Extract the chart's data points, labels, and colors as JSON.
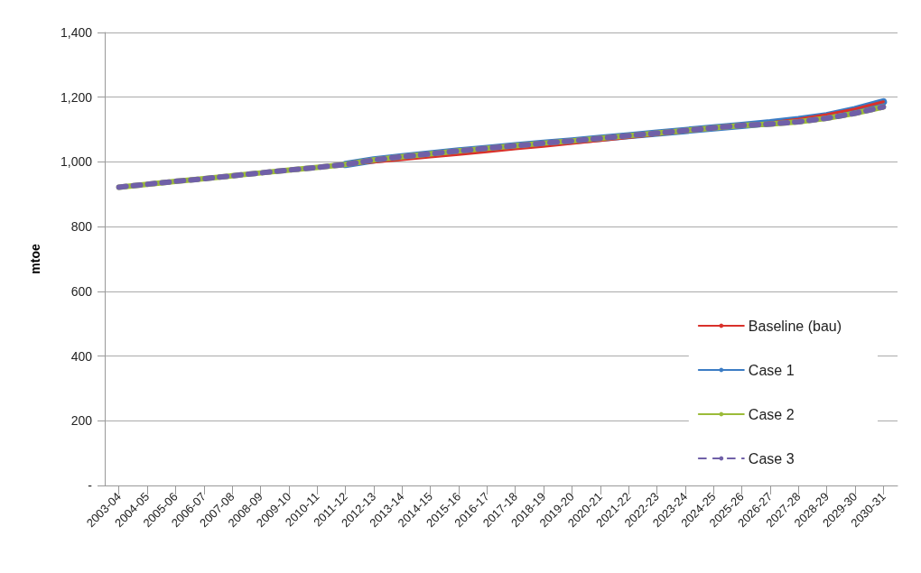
{
  "chart_data": {
    "type": "line",
    "ylabel": "mtoe",
    "categories": [
      "2003-04",
      "2004-05",
      "2005-06",
      "2006-07",
      "2007-08",
      "2008-09",
      "2009-10",
      "2010-11",
      "2011-12",
      "2012-13",
      "2013-14",
      "2014-15",
      "2015-16",
      "2016-17",
      "2017-18",
      "2018-19",
      "2019-20",
      "2020-21",
      "2021-22",
      "2022-23",
      "2023-24",
      "2024-25",
      "2025-26",
      "2026-27",
      "2027-28",
      "2028-29",
      "2029-30",
      "2030-31"
    ],
    "series": [
      {
        "name": "Baseline (bau)",
        "color": "#d9312b",
        "line_style": "solid",
        "values": [
          null,
          null,
          null,
          null,
          null,
          null,
          null,
          null,
          992,
          999,
          1007,
          1015,
          1023,
          1031,
          1040,
          1048,
          1057,
          1066,
          1075,
          1084,
          1093,
          1102,
          1111,
          1121,
          1132,
          1146,
          1164,
          1186
        ]
      },
      {
        "name": "Case 1",
        "color": "#3b7cc4",
        "line_style": "solid",
        "values": [
          null,
          null,
          null,
          null,
          null,
          null,
          null,
          null,
          992,
          1006,
          1016,
          1025,
          1034,
          1042,
          1050,
          1058,
          1065,
          1073,
          1081,
          1089,
          1097,
          1105,
          1113,
          1121,
          1131,
          1143,
          1162,
          1186
        ]
      },
      {
        "name": "Case 2",
        "color": "#9bbb39",
        "line_style": "solid",
        "values": [
          922,
          931,
          940,
          948,
          957,
          966,
          975,
          983,
          992,
          1006,
          1016,
          1025,
          1034,
          1042,
          1050,
          1058,
          1065,
          1073,
          1081,
          1089,
          1097,
          1105,
          1113,
          1117,
          1124,
          1135,
          1150,
          1170
        ]
      },
      {
        "name": "Case 3",
        "color": "#7060a8",
        "line_style": "dashed",
        "values": [
          922,
          931,
          940,
          948,
          957,
          966,
          975,
          983,
          992,
          1006,
          1016,
          1025,
          1034,
          1042,
          1050,
          1058,
          1065,
          1073,
          1081,
          1089,
          1097,
          1105,
          1113,
          1117,
          1124,
          1135,
          1150,
          1170
        ]
      }
    ],
    "ylim": [
      0,
      1400
    ],
    "yticks": [
      {
        "value": 0,
        "label": "-"
      },
      {
        "value": 200,
        "label": "200"
      },
      {
        "value": 400,
        "label": "400"
      },
      {
        "value": 600,
        "label": "600"
      },
      {
        "value": 800,
        "label": "800"
      },
      {
        "value": 1000,
        "label": "1,000"
      },
      {
        "value": 1200,
        "label": "1,200"
      },
      {
        "value": 1400,
        "label": "1,400"
      }
    ],
    "grid": "y",
    "legend": "right",
    "marker": "none"
  }
}
